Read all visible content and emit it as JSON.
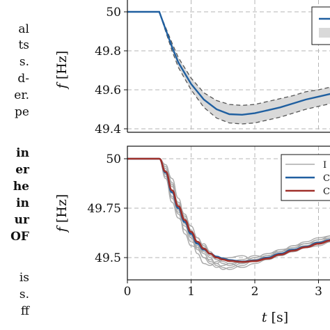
{
  "side_text": [
    {
      "text": "al",
      "bold": false
    },
    {
      "text": "ts",
      "bold": false
    },
    {
      "text": "s.",
      "bold": false
    },
    {
      "text": "d-",
      "bold": false
    },
    {
      "text": "er.",
      "bold": false
    },
    {
      "text": "pe",
      "bold": false
    },
    {
      "text": "in",
      "bold": true
    },
    {
      "text": "er",
      "bold": true
    },
    {
      "text": "he",
      "bold": true
    },
    {
      "text": "in",
      "bold": true
    },
    {
      "text": "ur",
      "bold": true
    },
    {
      "text": "OF",
      "bold": true
    },
    {
      "text": "is",
      "bold": false
    },
    {
      "text": "s.",
      "bold": false
    },
    {
      "text": "ff",
      "bold": false
    }
  ],
  "chart_data": [
    {
      "type": "area",
      "ylabel": "f [Hz]",
      "ylim": [
        49.4,
        50.02
      ],
      "xlim": [
        0,
        3.5
      ],
      "yticks": [
        "50",
        "49.8",
        "49.6",
        "49.4"
      ],
      "ytick_values": [
        50,
        49.8,
        49.6,
        49.4
      ],
      "grid": true,
      "legend_position": "top-right",
      "colors": {
        "mean": "#1f5fa0",
        "band": "#d9d9d9",
        "bound": "#555555"
      },
      "x": [
        0,
        0.5,
        0.6,
        0.7,
        0.8,
        1.0,
        1.2,
        1.4,
        1.6,
        1.8,
        2.0,
        2.2,
        2.4,
        2.6,
        2.8,
        3.0,
        3.2,
        3.4,
        3.5
      ],
      "series": [
        {
          "role": "mean",
          "values": [
            50,
            50,
            49.91,
            49.82,
            49.74,
            49.63,
            49.55,
            49.5,
            49.475,
            49.472,
            49.48,
            49.495,
            49.51,
            49.53,
            49.55,
            49.565,
            49.58,
            49.595,
            49.6
          ]
        },
        {
          "role": "upper",
          "values": [
            50,
            50,
            49.92,
            49.84,
            49.765,
            49.66,
            49.585,
            49.545,
            49.525,
            49.52,
            49.525,
            49.54,
            49.555,
            49.57,
            49.59,
            49.6,
            49.615,
            49.63,
            49.635
          ]
        },
        {
          "role": "lower",
          "values": [
            50,
            50,
            49.9,
            49.8,
            49.715,
            49.6,
            49.51,
            49.455,
            49.43,
            49.425,
            49.43,
            49.445,
            49.46,
            49.48,
            49.5,
            49.515,
            49.53,
            49.55,
            49.555
          ]
        }
      ]
    },
    {
      "type": "line",
      "xlabel": "t [s]",
      "ylabel": "f [Hz]",
      "xlim": [
        0,
        3.5
      ],
      "ylim": [
        49.38,
        50.05
      ],
      "xticks": [
        "0",
        "1",
        "2",
        "3"
      ],
      "xtick_values": [
        0,
        1,
        2,
        3
      ],
      "yticks": [
        "50",
        "49.75",
        "49.5"
      ],
      "ytick_values": [
        50,
        49.75,
        49.5
      ],
      "grid": true,
      "legend_position": "top-right",
      "legend": [
        "I",
        "C",
        "C"
      ],
      "colors": {
        "individual": "#aaaaaa",
        "blue": "#1f5fa0",
        "red": "#a0302a"
      },
      "x": [
        0,
        0.5,
        0.6,
        0.7,
        0.8,
        0.9,
        1.0,
        1.1,
        1.2,
        1.3,
        1.4,
        1.5,
        1.6,
        1.8,
        2.0,
        2.2,
        2.4,
        2.6,
        2.8,
        3.0,
        3.2,
        3.4,
        3.5
      ],
      "blue_values": [
        50,
        50,
        49.93,
        49.83,
        49.75,
        49.68,
        49.62,
        49.57,
        49.54,
        49.52,
        49.505,
        49.495,
        49.487,
        49.48,
        49.485,
        49.5,
        49.52,
        49.54,
        49.555,
        49.575,
        49.59,
        49.605,
        49.61
      ],
      "red_values": [
        50,
        50,
        49.935,
        49.84,
        49.76,
        49.69,
        49.63,
        49.58,
        49.545,
        49.52,
        49.5,
        49.49,
        49.483,
        49.478,
        49.482,
        49.495,
        49.515,
        49.535,
        49.552,
        49.57,
        49.587,
        49.6,
        49.607
      ],
      "individual_values": [
        [
          50,
          50,
          49.95,
          49.87,
          49.74,
          49.62,
          49.56,
          49.55,
          49.57,
          49.53,
          49.49,
          49.47,
          49.46,
          49.48,
          49.5,
          49.52,
          49.53,
          49.55,
          49.57,
          49.58,
          49.6,
          49.61,
          49.62
        ],
        [
          50,
          50,
          49.9,
          49.78,
          49.7,
          49.66,
          49.6,
          49.52,
          49.47,
          49.46,
          49.48,
          49.5,
          49.49,
          49.47,
          49.49,
          49.51,
          49.53,
          49.56,
          49.57,
          49.59,
          49.6,
          49.61,
          49.62
        ],
        [
          50,
          50,
          49.96,
          49.9,
          49.8,
          49.7,
          49.61,
          49.54,
          49.5,
          49.49,
          49.47,
          49.45,
          49.44,
          49.46,
          49.49,
          49.51,
          49.52,
          49.53,
          49.55,
          49.57,
          49.59,
          49.6,
          49.61
        ],
        [
          50,
          50,
          49.92,
          49.81,
          49.72,
          49.64,
          49.58,
          49.56,
          49.52,
          49.48,
          49.47,
          49.49,
          49.5,
          49.51,
          49.48,
          49.5,
          49.54,
          49.55,
          49.56,
          49.58,
          49.6,
          49.62,
          49.63
        ],
        [
          50,
          50,
          49.94,
          49.86,
          49.77,
          49.71,
          49.66,
          49.6,
          49.55,
          49.51,
          49.49,
          49.48,
          49.47,
          49.45,
          49.47,
          49.49,
          49.51,
          49.53,
          49.55,
          49.56,
          49.58,
          49.59,
          49.6
        ],
        [
          50,
          50,
          49.91,
          49.8,
          49.73,
          49.68,
          49.62,
          49.57,
          49.53,
          49.5,
          49.46,
          49.44,
          49.45,
          49.47,
          49.5,
          49.52,
          49.54,
          49.54,
          49.56,
          49.58,
          49.59,
          49.61,
          49.62
        ],
        [
          50,
          50,
          49.97,
          49.88,
          49.76,
          49.67,
          49.63,
          49.6,
          49.56,
          49.52,
          49.5,
          49.49,
          49.48,
          49.49,
          49.51,
          49.5,
          49.52,
          49.55,
          49.57,
          49.59,
          49.61,
          49.62,
          49.62
        ],
        [
          50,
          50,
          49.93,
          49.84,
          49.78,
          49.72,
          49.64,
          49.55,
          49.5,
          49.47,
          49.45,
          49.46,
          49.47,
          49.48,
          49.49,
          49.51,
          49.53,
          49.56,
          49.58,
          49.6,
          49.61,
          49.62,
          49.63
        ]
      ]
    }
  ]
}
